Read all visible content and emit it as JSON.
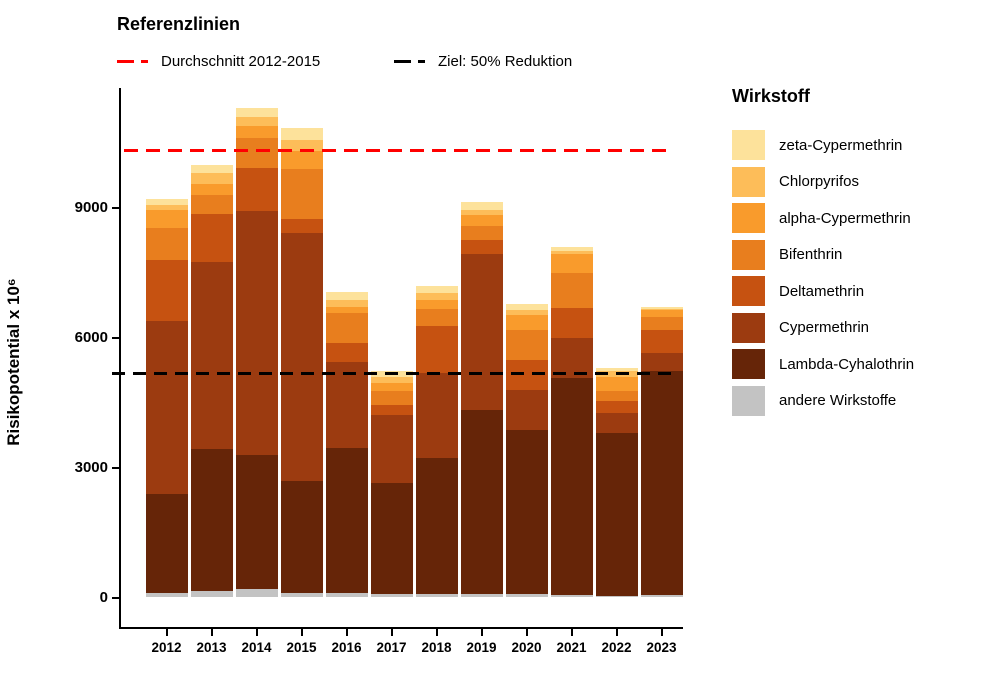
{
  "header": {
    "title": "Referenzlinien"
  },
  "legend": {
    "title": "Wirkstoff",
    "items": [
      {
        "label": "zeta-Cypermethrin",
        "color": "#FDE29B"
      },
      {
        "label": "Chlorpyrifos",
        "color": "#FDBD59"
      },
      {
        "label": "alpha-Cypermethrin",
        "color": "#F99B2C"
      },
      {
        "label": "Bifenthrin",
        "color": "#E87E1E"
      },
      {
        "label": "Deltamethrin",
        "color": "#C65211"
      },
      {
        "label": "Cypermethrin",
        "color": "#9C3B10"
      },
      {
        "label": "Lambda-Cyhalothrin",
        "color": "#662508"
      },
      {
        "label": "andere Wirkstoffe",
        "color": "#C3C3C3"
      }
    ]
  },
  "chart_data": {
    "type": "bar",
    "stacked": true,
    "ylabel": "Risikopotential x 10⁶",
    "xlabel": "",
    "categories": [
      "2012",
      "2013",
      "2014",
      "2015",
      "2016",
      "2017",
      "2018",
      "2019",
      "2020",
      "2021",
      "2022",
      "2023"
    ],
    "yticks": [
      0,
      3000,
      6000,
      9000
    ],
    "ylim": [
      0,
      11800
    ],
    "grid": false,
    "legend_position": "right",
    "series": [
      {
        "name": "andere Wirkstoffe",
        "color": "#C3C3C3",
        "values": [
          100,
          150,
          200,
          95,
          100,
          80,
          80,
          90,
          70,
          60,
          40,
          50
        ]
      },
      {
        "name": "Lambda-Cyhalothrin",
        "color": "#662508",
        "values": [
          2300,
          3295,
          3100,
          2590,
          3350,
          2565,
          3145,
          4255,
          3810,
          5015,
          3760,
          5180
        ]
      },
      {
        "name": "Cypermethrin",
        "color": "#9C3B10",
        "values": [
          3985,
          4320,
          5635,
          5735,
          2000,
          1585,
          1965,
          3590,
          920,
          925,
          470,
          425
        ]
      },
      {
        "name": "Deltamethrin",
        "color": "#C65211",
        "values": [
          1430,
          1115,
          1000,
          325,
          435,
          220,
          1080,
          340,
          700,
          695,
          280,
          525
        ]
      },
      {
        "name": "Bifenthrin",
        "color": "#E87E1E",
        "values": [
          735,
          440,
          695,
          1165,
          685,
          315,
          410,
          310,
          695,
          810,
          230,
          300
        ]
      },
      {
        "name": "alpha-Cypermethrin",
        "color": "#F99B2C",
        "values": [
          425,
          255,
          270,
          425,
          160,
          195,
          210,
          270,
          345,
          435,
          330,
          160
        ]
      },
      {
        "name": "Chlorpyrifos",
        "color": "#FDBD59",
        "values": [
          115,
          255,
          215,
          255,
          160,
          150,
          155,
          115,
          115,
          70,
          120,
          40
        ]
      },
      {
        "name": "zeta-Cypermethrin",
        "color": "#FDE29B",
        "values": [
          120,
          170,
          205,
          270,
          170,
          140,
          170,
          190,
          140,
          90,
          90,
          30
        ]
      }
    ],
    "totals": [
      9210,
      10000,
      11320,
      10860,
      7060,
      5250,
      7215,
      9160,
      6795,
      8100,
      5320,
      6710
    ],
    "reference_lines": [
      {
        "label": "Durchschnitt 2012-2015",
        "value": 10348,
        "color": "#ff0000",
        "style": "dashed"
      },
      {
        "label": "Ziel: 50% Reduktion",
        "value": 5174,
        "color": "#000000",
        "style": "dashed"
      }
    ]
  }
}
